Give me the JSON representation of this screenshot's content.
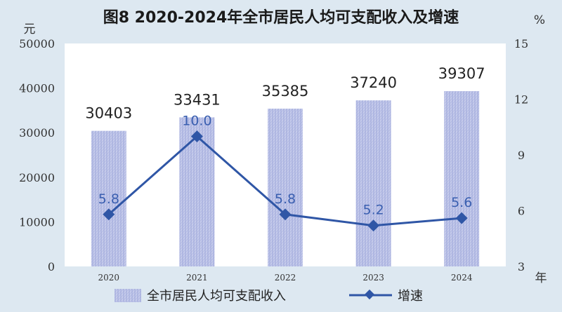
{
  "title": "图8   2020-2024年全市居民人均可支配收入及增速",
  "y_left_unit": "元",
  "y_right_unit": "%",
  "x_axis_unit": "年",
  "colors": {
    "background": "#dde8f1",
    "bar": "#b8bfe6",
    "line": "#2f56a6"
  },
  "chart_data": {
    "type": "bar",
    "categories": [
      "2020",
      "2021",
      "2022",
      "2023",
      "2024"
    ],
    "series": [
      {
        "name": "全市居民人均可支配收入",
        "type": "bar",
        "axis": "left",
        "values": [
          30403,
          33431,
          35385,
          37240,
          39307
        ]
      },
      {
        "name": "增速",
        "type": "line",
        "axis": "right",
        "values": [
          5.8,
          10.0,
          5.8,
          5.2,
          5.6
        ]
      }
    ],
    "bar_labels": [
      "30403",
      "33431",
      "35385",
      "37240",
      "39307"
    ],
    "line_labels": [
      "5.8",
      "10.0",
      "5.8",
      "5.2",
      "5.6"
    ],
    "y_left": {
      "min": 0,
      "max": 50000,
      "ticks": [
        "0",
        "10000",
        "20000",
        "30000",
        "40000",
        "50000"
      ]
    },
    "y_right": {
      "min": 3,
      "max": 15,
      "ticks": [
        "3",
        "6",
        "9",
        "12",
        "15"
      ]
    },
    "legend_position": "bottom",
    "grid": false
  }
}
